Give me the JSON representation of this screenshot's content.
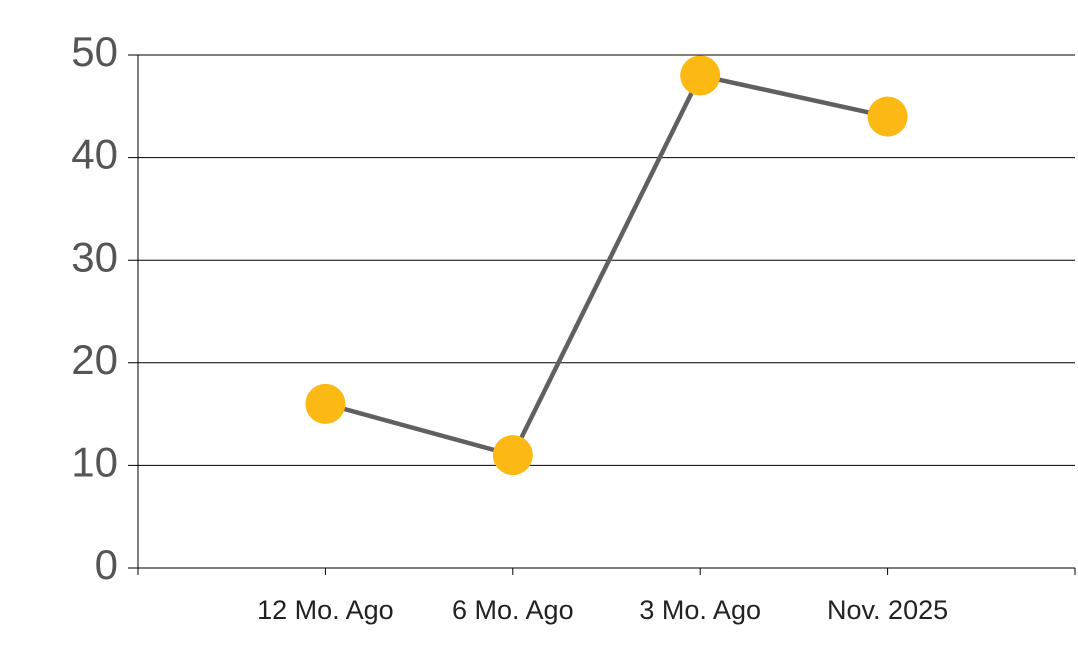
{
  "chart_data": {
    "type": "line",
    "categories": [
      "12 Mo. Ago",
      "6 Mo. Ago",
      "3 Mo. Ago",
      "Nov. 2025"
    ],
    "values": [
      16,
      11,
      48,
      44
    ],
    "line_color": "#606060",
    "marker_color": "#fdb913",
    "ylim": [
      0,
      50
    ],
    "yticks": [
      0,
      10,
      20,
      30,
      40,
      50
    ],
    "grid": true
  }
}
